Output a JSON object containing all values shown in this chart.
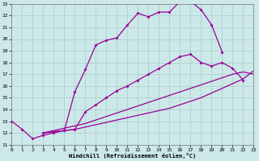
{
  "xlabel": "Windchill (Refroidissement éolien,°C)",
  "bg_color": "#cce8e8",
  "grid_color": "#aacccc",
  "line_color": "#990099",
  "xmin": 0,
  "xmax": 23,
  "ymin": 11,
  "ymax": 23,
  "curve1": {
    "x": [
      0,
      1,
      2,
      3,
      4,
      5,
      6,
      7,
      8,
      9,
      10,
      11,
      12,
      13,
      14,
      15,
      16,
      17,
      18,
      19,
      20
    ],
    "y": [
      13.0,
      12.3,
      11.5,
      11.8,
      12.0,
      12.2,
      15.5,
      17.4,
      19.5,
      19.9,
      20.1,
      21.2,
      22.2,
      21.9,
      22.3,
      22.3,
      23.2,
      23.2,
      22.5,
      21.2,
      18.9
    ],
    "markers": true
  },
  "curve2": {
    "x": [
      3,
      4,
      5,
      6,
      7,
      8,
      9,
      10,
      11,
      12,
      13,
      14,
      15,
      16,
      17,
      18,
      19,
      20,
      21,
      22
    ],
    "y": [
      12.0,
      12.1,
      12.2,
      12.3,
      13.8,
      14.4,
      15.0,
      15.6,
      16.0,
      16.5,
      17.0,
      17.5,
      18.0,
      18.5,
      18.7,
      18.0,
      17.7,
      18.0,
      17.5,
      16.5
    ],
    "markers": true
  },
  "curve3": {
    "x": [
      3,
      4,
      5,
      6,
      7,
      8,
      9,
      10,
      11,
      12,
      13,
      14,
      15,
      16,
      17,
      18,
      19,
      20,
      21,
      22,
      23
    ],
    "y": [
      12.0,
      12.2,
      12.4,
      12.6,
      12.8,
      13.1,
      13.4,
      13.7,
      14.0,
      14.3,
      14.6,
      14.9,
      15.2,
      15.5,
      15.8,
      16.1,
      16.4,
      16.7,
      17.0,
      17.2,
      17.0
    ],
    "markers": false
  },
  "curve4": {
    "x": [
      3,
      4,
      5,
      6,
      7,
      8,
      9,
      10,
      11,
      12,
      13,
      14,
      15,
      16,
      17,
      18,
      19,
      20,
      21,
      22,
      23
    ],
    "y": [
      12.0,
      12.1,
      12.2,
      12.3,
      12.5,
      12.7,
      12.9,
      13.1,
      13.3,
      13.5,
      13.7,
      13.9,
      14.1,
      14.4,
      14.7,
      15.0,
      15.4,
      15.8,
      16.2,
      16.6,
      17.3
    ],
    "markers": false
  }
}
